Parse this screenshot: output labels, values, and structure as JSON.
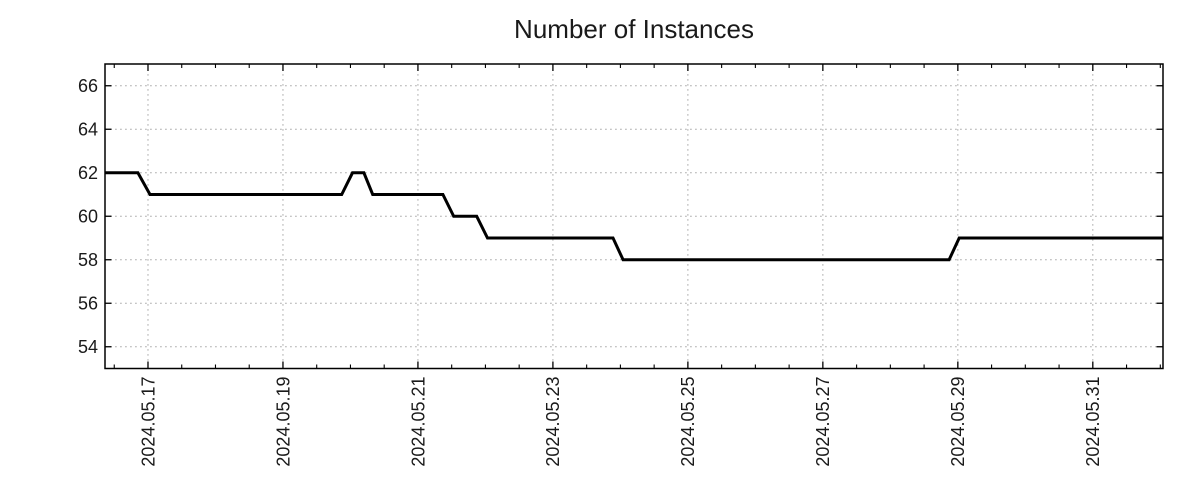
{
  "chart_data": {
    "type": "line",
    "title": "Number of Instances",
    "legend": {
      "show": false
    },
    "x_axis": {
      "unit": "date",
      "epoch": "2024-05-16 00:00",
      "range_days": [
        0.363,
        16.04
      ],
      "major_ticks": [
        {
          "d": 1,
          "label": "2024.05.17"
        },
        {
          "d": 3,
          "label": "2024.05.19"
        },
        {
          "d": 5,
          "label": "2024.05.21"
        },
        {
          "d": 7,
          "label": "2024.05.23"
        },
        {
          "d": 9,
          "label": "2024.05.25"
        },
        {
          "d": 11,
          "label": "2024.05.27"
        },
        {
          "d": 13,
          "label": "2024.05.29"
        },
        {
          "d": 15,
          "label": "2024.05.31"
        }
      ],
      "minor_tick_step_days": 0.5,
      "label_rotation_deg": -90
    },
    "y_axis": {
      "range": [
        53,
        67
      ],
      "major_ticks": [
        54,
        56,
        58,
        60,
        62,
        64,
        66
      ]
    },
    "grid": {
      "show": true,
      "style": "dotted",
      "color": "#b0b0b0",
      "at": "major ticks only"
    },
    "series": [
      {
        "name": "Number of Instances",
        "color": "#000000",
        "line_width": 3,
        "points_d_value": [
          [
            0.363,
            62
          ],
          [
            0.85,
            62
          ],
          [
            1.03,
            61
          ],
          [
            3.87,
            61
          ],
          [
            4.03,
            62
          ],
          [
            4.2,
            62
          ],
          [
            4.33,
            61
          ],
          [
            5.37,
            61
          ],
          [
            5.53,
            60
          ],
          [
            5.87,
            60
          ],
          [
            6.03,
            59
          ],
          [
            7.89,
            59
          ],
          [
            8.04,
            58
          ],
          [
            12.87,
            58
          ],
          [
            13.02,
            59
          ],
          [
            16.04,
            59
          ]
        ]
      }
    ],
    "colors": {
      "axis": "#000000",
      "text": "#1a1a1a",
      "background": "#ffffff"
    }
  }
}
